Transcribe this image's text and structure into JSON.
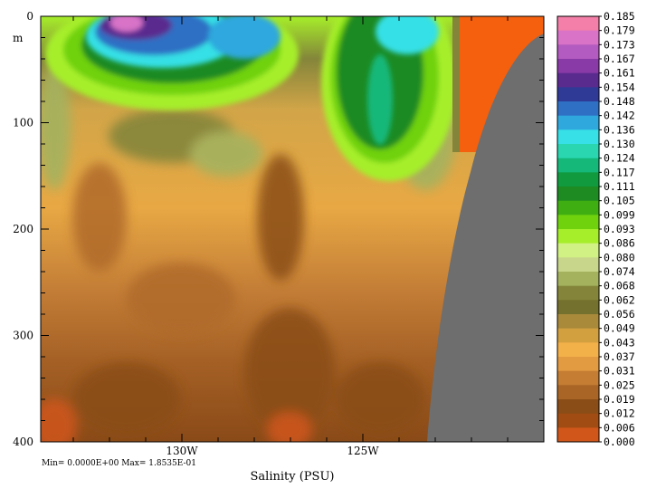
{
  "chart_data": {
    "type": "heatmap",
    "title": "Salinity (PSU)",
    "y_unit": "m",
    "y_range": [
      0,
      400
    ],
    "y_inverted": true,
    "y_ticks": [
      "0",
      "100",
      "200",
      "300",
      "400"
    ],
    "y_tick_values": [
      0,
      100,
      200,
      300,
      400
    ],
    "x_range": [
      -133.9,
      -120.0
    ],
    "x_ticks": [
      "130W",
      "125W"
    ],
    "x_tick_values": [
      -130,
      -125
    ],
    "stats_text": "Min= 0.0000E+00  Max= 1.8535E-01",
    "colorbar": {
      "labels": [
        "0.185",
        "0.179",
        "0.173",
        "0.167",
        "0.161",
        "0.154",
        "0.148",
        "0.142",
        "0.136",
        "0.130",
        "0.124",
        "0.117",
        "0.111",
        "0.105",
        "0.099",
        "0.093",
        "0.086",
        "0.080",
        "0.074",
        "0.068",
        "0.062",
        "0.056",
        "0.049",
        "0.043",
        "0.037",
        "0.031",
        "0.025",
        "0.019",
        "0.012",
        "0.006",
        "0.000"
      ],
      "colors": [
        "#f47fa8",
        "#d873c8",
        "#b35bc0",
        "#8a3aa6",
        "#5a2b8f",
        "#2f3a97",
        "#2f6fc4",
        "#2fa8de",
        "#36e0e6",
        "#2ad6b0",
        "#16b87a",
        "#119a3e",
        "#1e8a22",
        "#3fae12",
        "#6fd20c",
        "#a6ee2a",
        "#d2f184",
        "#c7d68a",
        "#a4b25e",
        "#84853a",
        "#74702e",
        "#a88a3a",
        "#d3a040",
        "#f3b14a",
        "#e39b42",
        "#c47d32",
        "#a86526",
        "#8a4d18",
        "#a04c12",
        "#d0561a",
        "#f4600e"
      ]
    },
    "land_mask": "gray",
    "notes": "Vertical salinity section; values shown via colorbar levels"
  }
}
